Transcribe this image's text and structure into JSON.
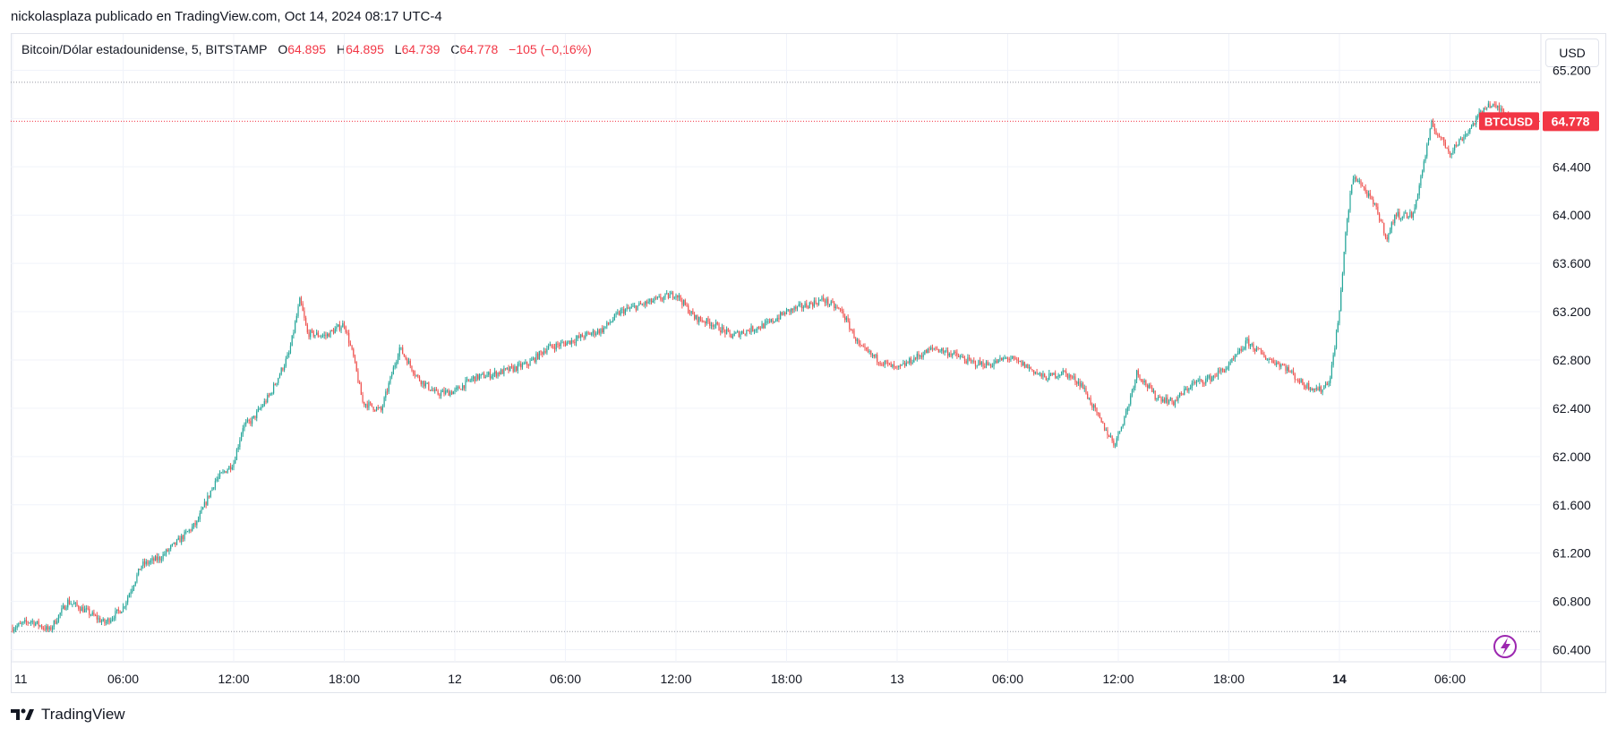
{
  "header": {
    "attribution": "nickolasplaza publicado en TradingView.com, Oct 14, 2024 08:17 UTC-4"
  },
  "legend": {
    "symbol": "Bitcoin/Dólar estadounidense, 5, BITSTAMP",
    "o_label": "O",
    "o_value": "64.895",
    "h_label": "H",
    "h_value": "64.895",
    "l_label": "L",
    "l_value": "64.739",
    "c_label": "C",
    "c_value": "64.778",
    "change": "−105 (−0,16%)"
  },
  "currency_button": "USD",
  "price_tag": {
    "symbol": "BTCUSD",
    "price": "64.778"
  },
  "footer": {
    "brand": "TradingView"
  },
  "colors": {
    "up": "#26a69a",
    "down": "#ef5350",
    "grid": "#f0f3fa",
    "price_line": "#f23645",
    "accent_icon": "#9c27b0"
  },
  "chart_data": {
    "type": "candlestick",
    "title": "Bitcoin/Dólar estadounidense, 5, BITSTAMP",
    "interval": "5",
    "ylim": [
      60300,
      65500
    ],
    "y_ticks": [
      "65.200",
      "64.800",
      "64.400",
      "64.000",
      "63.600",
      "63.200",
      "62.800",
      "62.400",
      "62.000",
      "61.600",
      "61.200",
      "60.800",
      "60.400"
    ],
    "y_tick_values": [
      65200,
      64800,
      64400,
      64000,
      63600,
      63200,
      62800,
      62400,
      62000,
      61600,
      61200,
      60800,
      60400
    ],
    "x_ticks": [
      {
        "label": "11",
        "hour": 0,
        "bold": false
      },
      {
        "label": "06:00",
        "hour": 6,
        "bold": false
      },
      {
        "label": "12:00",
        "hour": 12,
        "bold": false
      },
      {
        "label": "18:00",
        "hour": 18,
        "bold": false
      },
      {
        "label": "12",
        "hour": 24,
        "bold": false
      },
      {
        "label": "06:00",
        "hour": 30,
        "bold": false
      },
      {
        "label": "12:00",
        "hour": 36,
        "bold": false
      },
      {
        "label": "18:00",
        "hour": 42,
        "bold": false
      },
      {
        "label": "13",
        "hour": 48,
        "bold": false
      },
      {
        "label": "06:00",
        "hour": 54,
        "bold": false
      },
      {
        "label": "12:00",
        "hour": 60,
        "bold": false
      },
      {
        "label": "18:00",
        "hour": 66,
        "bold": false
      },
      {
        "label": "14",
        "hour": 72,
        "bold": true
      },
      {
        "label": "06:00",
        "hour": 78,
        "bold": false
      }
    ],
    "x_range_hours": [
      0,
      82.4
    ],
    "current_price": 64778,
    "high_line": 65100,
    "low_line": 60550,
    "price_path": [
      [
        0,
        60580
      ],
      [
        1,
        60640
      ],
      [
        2,
        60560
      ],
      [
        3,
        60800
      ],
      [
        4,
        60720
      ],
      [
        5,
        60620
      ],
      [
        6,
        60750
      ],
      [
        7,
        61100
      ],
      [
        8,
        61160
      ],
      [
        9,
        61300
      ],
      [
        10,
        61450
      ],
      [
        11,
        61800
      ],
      [
        12,
        61950
      ],
      [
        12.5,
        62250
      ],
      [
        13,
        62300
      ],
      [
        14,
        62520
      ],
      [
        15,
        62850
      ],
      [
        15.6,
        63300
      ],
      [
        16,
        63020
      ],
      [
        17,
        63000
      ],
      [
        18,
        63100
      ],
      [
        18.5,
        62820
      ],
      [
        19,
        62450
      ],
      [
        20,
        62380
      ],
      [
        21,
        62900
      ],
      [
        22,
        62650
      ],
      [
        23,
        62520
      ],
      [
        24,
        62540
      ],
      [
        25,
        62650
      ],
      [
        26,
        62680
      ],
      [
        27,
        62720
      ],
      [
        28,
        62770
      ],
      [
        29,
        62900
      ],
      [
        30,
        62940
      ],
      [
        31,
        63000
      ],
      [
        32,
        63050
      ],
      [
        33,
        63200
      ],
      [
        34,
        63250
      ],
      [
        35,
        63300
      ],
      [
        36,
        63350
      ],
      [
        37,
        63150
      ],
      [
        38,
        63100
      ],
      [
        39,
        63000
      ],
      [
        40,
        63050
      ],
      [
        41,
        63100
      ],
      [
        42,
        63200
      ],
      [
        43,
        63250
      ],
      [
        44,
        63300
      ],
      [
        45,
        63200
      ],
      [
        46,
        62900
      ],
      [
        47,
        62800
      ],
      [
        48,
        62720
      ],
      [
        49,
        62820
      ],
      [
        50,
        62900
      ],
      [
        51,
        62850
      ],
      [
        52,
        62780
      ],
      [
        53,
        62760
      ],
      [
        54,
        62820
      ],
      [
        55,
        62750
      ],
      [
        56,
        62650
      ],
      [
        57,
        62700
      ],
      [
        58,
        62600
      ],
      [
        59,
        62300
      ],
      [
        59.8,
        62100
      ],
      [
        60.5,
        62400
      ],
      [
        61,
        62700
      ],
      [
        62,
        62500
      ],
      [
        63,
        62450
      ],
      [
        64,
        62600
      ],
      [
        65,
        62650
      ],
      [
        66,
        62750
      ],
      [
        67,
        62950
      ],
      [
        68,
        62820
      ],
      [
        69,
        62750
      ],
      [
        70,
        62600
      ],
      [
        71,
        62550
      ],
      [
        71.5,
        62650
      ],
      [
        72,
        63200
      ],
      [
        72.3,
        63800
      ],
      [
        72.7,
        64300
      ],
      [
        73,
        64300
      ],
      [
        74,
        64050
      ],
      [
        74.6,
        63800
      ],
      [
        75,
        64000
      ],
      [
        76,
        64000
      ],
      [
        77,
        64750
      ],
      [
        78,
        64520
      ],
      [
        79,
        64700
      ],
      [
        80,
        64920
      ],
      [
        81,
        64860
      ],
      [
        81.4,
        64778
      ]
    ]
  }
}
